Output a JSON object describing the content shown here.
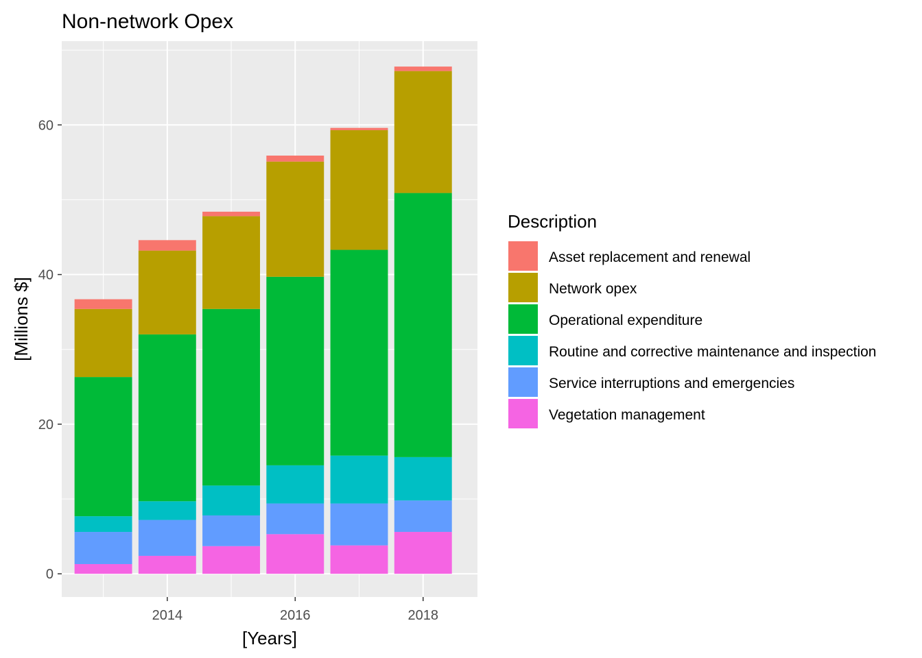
{
  "chart_data": {
    "type": "bar",
    "stacked": true,
    "title": "Non-network Opex",
    "xlabel": "[Years]",
    "ylabel": "[Millions $]",
    "x": [
      2013,
      2014,
      2015,
      2016,
      2017,
      2018
    ],
    "x_ticks": [
      2014,
      2016,
      2018
    ],
    "y_ticks": [
      0,
      20,
      40,
      60
    ],
    "xlim": [
      2012.35,
      2018.85
    ],
    "ylim": [
      -3.1,
      71.2
    ],
    "grid": true,
    "legend_position": "right",
    "legend_title": "Description",
    "series": [
      {
        "name": "Vegetation management",
        "color": "#F564E3",
        "values": [
          1.3,
          2.4,
          3.7,
          5.3,
          3.8,
          5.6
        ]
      },
      {
        "name": "Service interruptions and emergencies",
        "color": "#619CFF",
        "values": [
          4.3,
          4.8,
          4.1,
          4.1,
          5.6,
          4.2
        ]
      },
      {
        "name": "Routine and corrective maintenance and inspection",
        "color": "#00BFC4",
        "values": [
          2.1,
          2.5,
          4.0,
          5.1,
          6.4,
          5.8
        ]
      },
      {
        "name": "Operational expenditure",
        "color": "#00BA38",
        "values": [
          18.6,
          22.3,
          23.6,
          25.2,
          27.5,
          35.3
        ]
      },
      {
        "name": "Network opex",
        "color": "#B79F00",
        "values": [
          9.1,
          11.2,
          12.4,
          15.4,
          16.0,
          16.3
        ]
      },
      {
        "name": "Asset replacement and renewal",
        "color": "#F8766D",
        "values": [
          1.3,
          1.4,
          0.6,
          0.8,
          0.3,
          0.6
        ]
      }
    ],
    "legend_order": [
      "Asset replacement and renewal",
      "Network opex",
      "Operational expenditure",
      "Routine and corrective maintenance and inspection",
      "Service interruptions and emergencies",
      "Vegetation management"
    ]
  },
  "colors": {
    "panel_background": "#EBEBEB",
    "grid_major": "#FFFFFF",
    "tick_text": "#4D4D4D"
  }
}
